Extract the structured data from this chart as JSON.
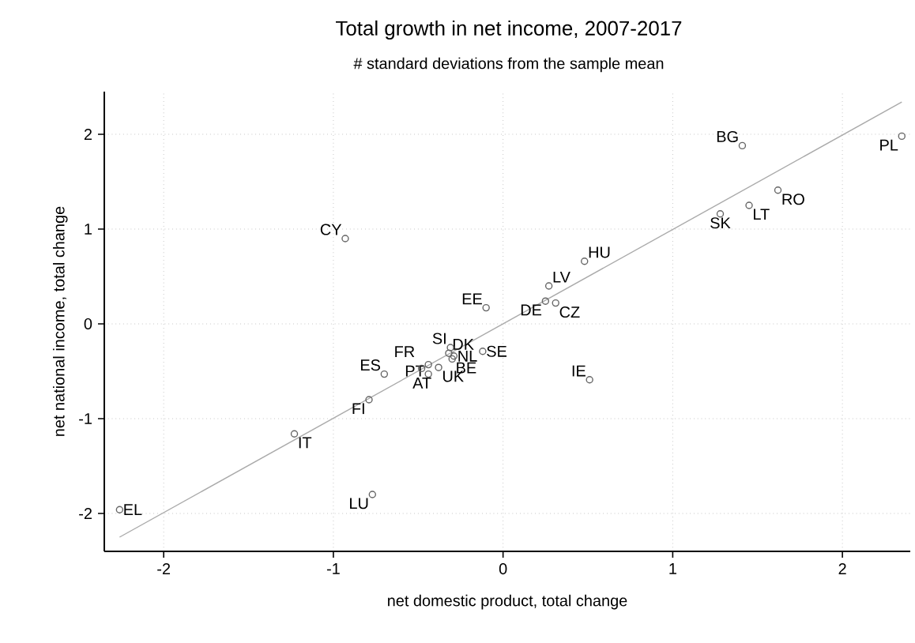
{
  "chart_data": {
    "type": "scatter",
    "title": "Total growth in net income, 2007-2017",
    "subtitle": "# standard deviations from the sample mean",
    "xlabel": "net domestic product, total change",
    "ylabel": "net national income, total change",
    "xlim": [
      -2.35,
      2.4
    ],
    "ylim": [
      -2.4,
      2.45
    ],
    "xticks": [
      -2,
      -1,
      0,
      1,
      2
    ],
    "yticks": [
      -2,
      -1,
      0,
      1,
      2
    ],
    "grid": true,
    "marker": "circle",
    "series": [
      {
        "color": "#666666",
        "x": [
          -0.93,
          -0.1,
          -0.7,
          -0.79,
          -0.48,
          -0.44,
          -0.44,
          -0.38,
          -0.3,
          -0.29,
          -0.32,
          -0.31,
          -0.12,
          0.51,
          0.27,
          0.48,
          0.25,
          0.31,
          1.41,
          2.35,
          1.62,
          1.45,
          1.28,
          -1.23,
          -0.77,
          -2.26
        ],
        "values": [
          0.9,
          0.17,
          -0.53,
          -0.8,
          -0.47,
          -0.43,
          -0.53,
          -0.46,
          -0.37,
          -0.34,
          -0.31,
          -0.25,
          -0.29,
          -0.59,
          0.4,
          0.66,
          0.24,
          0.22,
          1.88,
          1.98,
          1.41,
          1.25,
          1.16,
          -1.16,
          -1.8,
          -1.96
        ]
      },
      {
        "type": "line",
        "color": "#aaaaaa",
        "marker": "none",
        "x": [
          -2.26,
          2.35
        ],
        "values": [
          -2.25,
          2.34
        ]
      }
    ],
    "annotations": [
      {
        "text": "CY",
        "x": -0.93,
        "y": 0.9
      },
      {
        "text": "EE",
        "x": -0.1,
        "y": 0.17
      },
      {
        "text": "ES",
        "x": -0.7,
        "y": -0.53
      },
      {
        "text": "FI",
        "x": -0.79,
        "y": -0.8
      },
      {
        "text": "FR",
        "x": -0.48,
        "y": -0.47
      },
      {
        "text": "PT",
        "x": -0.44,
        "y": -0.43
      },
      {
        "text": "AT",
        "x": -0.44,
        "y": -0.53
      },
      {
        "text": "UK",
        "x": -0.38,
        "y": -0.46
      },
      {
        "text": "BE",
        "x": -0.3,
        "y": -0.37
      },
      {
        "text": "NL",
        "x": -0.29,
        "y": -0.34
      },
      {
        "text": "DK",
        "x": -0.32,
        "y": -0.31
      },
      {
        "text": "SI",
        "x": -0.31,
        "y": -0.25
      },
      {
        "text": "SE",
        "x": -0.12,
        "y": -0.29
      },
      {
        "text": "IE",
        "x": 0.51,
        "y": -0.59
      },
      {
        "text": "LV",
        "x": 0.27,
        "y": 0.4
      },
      {
        "text": "HU",
        "x": 0.48,
        "y": 0.66
      },
      {
        "text": "DE",
        "x": 0.25,
        "y": 0.24
      },
      {
        "text": "CZ",
        "x": 0.31,
        "y": 0.22
      },
      {
        "text": "BG",
        "x": 1.41,
        "y": 1.88
      },
      {
        "text": "PL",
        "x": 2.35,
        "y": 1.98
      },
      {
        "text": "RO",
        "x": 1.62,
        "y": 1.41
      },
      {
        "text": "LT",
        "x": 1.45,
        "y": 1.25
      },
      {
        "text": "SK",
        "x": 1.28,
        "y": 1.16
      },
      {
        "text": "IT",
        "x": -1.23,
        "y": -1.16
      },
      {
        "text": "LU",
        "x": -0.77,
        "y": -1.8
      },
      {
        "text": "EL",
        "x": -2.26,
        "y": -1.96
      }
    ]
  }
}
